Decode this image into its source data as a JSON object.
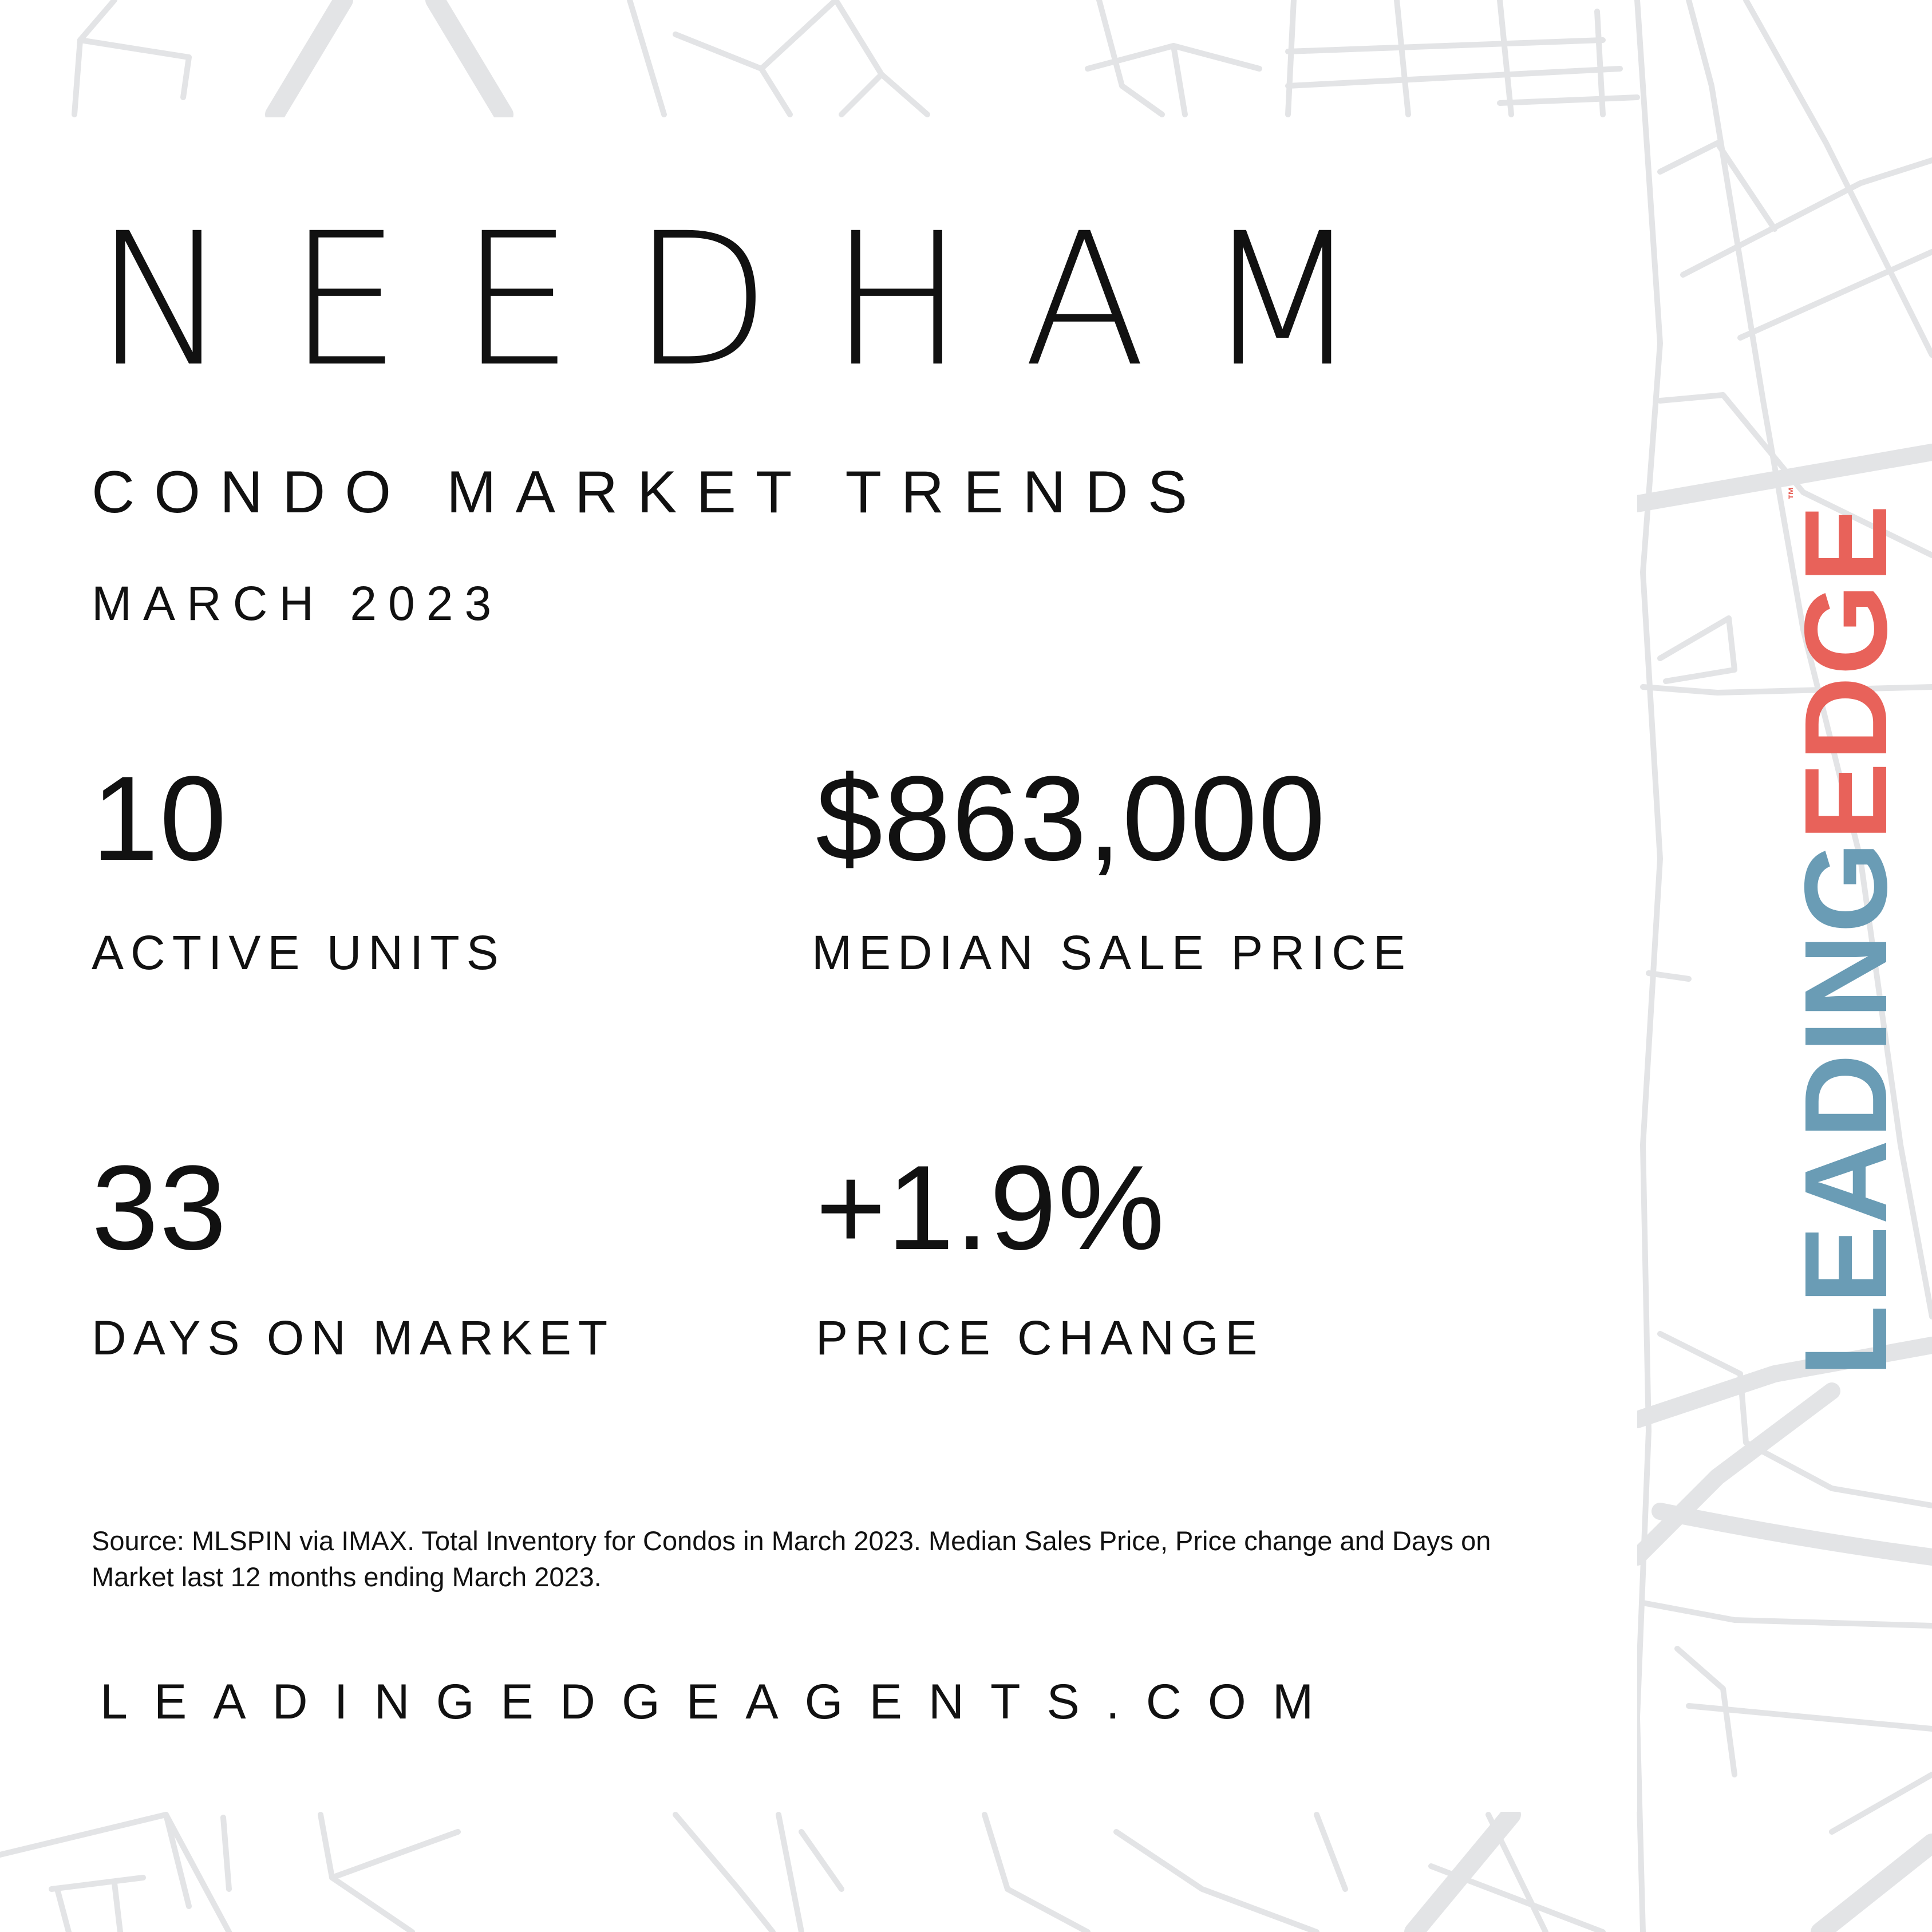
{
  "header": {
    "town": "NEEDHAM",
    "subtitle": "CONDO MARKET TRENDS",
    "period": "MARCH 2023"
  },
  "stats": [
    {
      "value": "10",
      "label": "ACTIVE UNITS"
    },
    {
      "value": "$863,000",
      "label": "MEDIAN SALE PRICE"
    },
    {
      "value": "33",
      "label": "DAYS ON MARKET"
    },
    {
      "value": "+1.9%",
      "label": "PRICE CHANGE"
    }
  ],
  "footer": {
    "source": "Source: MLSPIN via IMAX. Total Inventory for Condos in March 2023. Median Sales Price, Price change and Days on Market last 12 months ending March 2023.",
    "website": "LEADINGEDGEAGENTS.COM"
  },
  "logo": {
    "part1": "LEADING",
    "part2": "EDGE",
    "trademark": "™",
    "colors": {
      "leading": "#6a9cb5",
      "edge": "#e8625a"
    }
  },
  "background": {
    "icon": "street-map-pattern",
    "line_color": "#e3e4e6"
  }
}
